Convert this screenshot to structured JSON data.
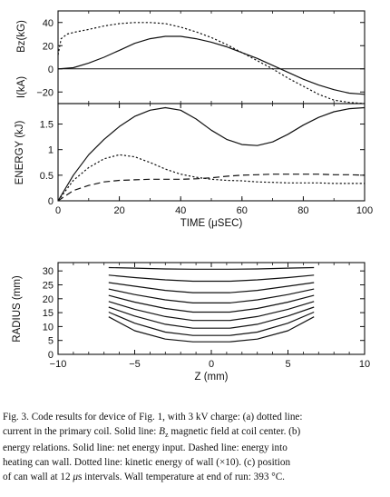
{
  "chart_data": [
    {
      "type": "line",
      "ylabel_top": "Bz(kG)",
      "ylabel_bottom": "I(kA)",
      "xlim": [
        0,
        100
      ],
      "ylim": [
        -30,
        50
      ],
      "yticks": [
        "40",
        "20",
        "0",
        "−20"
      ],
      "yticks_values": [
        40,
        20,
        0,
        -20
      ],
      "grid": false,
      "series": [
        {
          "style": "solid",
          "x": [
            0,
            5,
            10,
            15,
            20,
            25,
            30,
            35,
            40,
            45,
            50,
            55,
            60,
            65,
            70,
            75,
            80,
            85,
            90,
            95,
            100
          ],
          "y": [
            0,
            1,
            5,
            10,
            16,
            22,
            26,
            28,
            28,
            26,
            23,
            19,
            14,
            9,
            3,
            -3,
            -9,
            -14,
            -18,
            -21,
            -22
          ]
        },
        {
          "style": "dotted",
          "x": [
            0,
            1,
            3,
            6,
            10,
            15,
            20,
            25,
            30,
            35,
            40,
            45,
            50,
            55,
            60,
            65,
            70,
            75,
            80,
            85,
            90,
            95,
            100
          ],
          "y": [
            12,
            26,
            30,
            32,
            34,
            37,
            39,
            40,
            40,
            39,
            36,
            32,
            27,
            21,
            14,
            7,
            0,
            -8,
            -15,
            -22,
            -27,
            -29,
            -30
          ]
        }
      ]
    },
    {
      "type": "line",
      "ylabel": "ENERGY (kJ)",
      "xlabel": "TIME (μSEC)",
      "xlim": [
        0,
        100
      ],
      "ylim": [
        0,
        1.9
      ],
      "xticks": [
        "0",
        "20",
        "40",
        "60",
        "80",
        "100"
      ],
      "xticks_values": [
        0,
        20,
        40,
        60,
        80,
        100
      ],
      "yticks": [
        "0",
        "0.5",
        "1",
        "1.5"
      ],
      "yticks_values": [
        0,
        0.5,
        1,
        1.5
      ],
      "grid": false,
      "series": [
        {
          "style": "solid",
          "x": [
            0,
            5,
            10,
            15,
            20,
            25,
            30,
            35,
            40,
            45,
            50,
            55,
            60,
            65,
            70,
            75,
            80,
            85,
            90,
            95,
            100
          ],
          "y": [
            0,
            0.5,
            0.9,
            1.2,
            1.45,
            1.65,
            1.77,
            1.82,
            1.77,
            1.6,
            1.38,
            1.2,
            1.1,
            1.08,
            1.15,
            1.3,
            1.48,
            1.63,
            1.74,
            1.8,
            1.82
          ]
        },
        {
          "style": "dotted",
          "x": [
            0,
            5,
            10,
            15,
            20,
            25,
            30,
            35,
            40,
            45,
            50,
            55,
            60,
            65,
            70,
            75,
            80,
            85,
            90,
            95,
            100
          ],
          "y": [
            0,
            0.4,
            0.65,
            0.82,
            0.9,
            0.86,
            0.75,
            0.62,
            0.52,
            0.46,
            0.42,
            0.4,
            0.39,
            0.37,
            0.36,
            0.35,
            0.35,
            0.35,
            0.34,
            0.34,
            0.34
          ]
        },
        {
          "style": "dashed",
          "x": [
            0,
            5,
            10,
            15,
            20,
            25,
            30,
            35,
            40,
            45,
            50,
            55,
            60,
            65,
            70,
            75,
            80,
            85,
            90,
            95,
            100
          ],
          "y": [
            0,
            0.2,
            0.3,
            0.37,
            0.4,
            0.41,
            0.42,
            0.42,
            0.42,
            0.43,
            0.45,
            0.48,
            0.5,
            0.51,
            0.52,
            0.52,
            0.52,
            0.52,
            0.51,
            0.51,
            0.5
          ]
        }
      ]
    },
    {
      "type": "line",
      "ylabel": "RADIUS (mm)",
      "xlabel": "Z (mm)",
      "xlim": [
        -10,
        10
      ],
      "ylim": [
        0,
        33
      ],
      "xticks": [
        "−10",
        "−5",
        "0",
        "5",
        "10"
      ],
      "xticks_values": [
        -10,
        -5,
        0,
        5,
        10
      ],
      "yticks": [
        "0",
        "5",
        "10",
        "15",
        "20",
        "25",
        "30"
      ],
      "yticks_values": [
        0,
        5,
        10,
        15,
        20,
        25,
        30
      ],
      "grid": false,
      "series": [
        {
          "x": [
            -6.7,
            -5.0,
            -3.0,
            -1.2,
            1.2,
            3.0,
            5.0,
            6.7
          ],
          "y": [
            31.2,
            31.0,
            30.7,
            30.6,
            30.6,
            30.7,
            31.0,
            31.2
          ]
        },
        {
          "x": [
            -6.7,
            -5.0,
            -3.0,
            -1.2,
            1.2,
            3.0,
            5.0,
            6.7
          ],
          "y": [
            28.5,
            27.6,
            26.8,
            26.3,
            26.3,
            26.8,
            27.6,
            28.5
          ]
        },
        {
          "x": [
            -6.7,
            -5.0,
            -3.0,
            -1.2,
            1.2,
            3.0,
            5.0,
            6.7
          ],
          "y": [
            25.8,
            24.5,
            23.0,
            22.2,
            22.2,
            23.0,
            24.5,
            25.8
          ]
        },
        {
          "x": [
            -6.7,
            -5.0,
            -3.0,
            -1.2,
            1.2,
            3.0,
            5.0,
            6.7
          ],
          "y": [
            23.5,
            21.5,
            19.6,
            18.5,
            18.5,
            19.6,
            21.5,
            23.5
          ]
        },
        {
          "x": [
            -6.7,
            -5.0,
            -3.0,
            -1.2,
            1.2,
            3.0,
            5.0,
            6.7
          ],
          "y": [
            21.2,
            18.8,
            16.5,
            15.2,
            15.2,
            16.5,
            18.8,
            21.2
          ]
        },
        {
          "x": [
            -6.7,
            -5.0,
            -3.0,
            -1.2,
            1.2,
            3.0,
            5.0,
            6.7
          ],
          "y": [
            19.0,
            16.2,
            13.6,
            12.2,
            12.2,
            13.6,
            16.2,
            19.0
          ]
        },
        {
          "x": [
            -6.7,
            -5.0,
            -3.0,
            -1.2,
            1.2,
            3.0,
            5.0,
            6.7
          ],
          "y": [
            17.0,
            13.8,
            10.8,
            9.4,
            9.4,
            10.8,
            13.8,
            17.0
          ]
        },
        {
          "x": [
            -6.7,
            -5.0,
            -3.0,
            -1.2,
            1.2,
            3.0,
            5.0,
            6.7
          ],
          "y": [
            15.2,
            11.2,
            8.0,
            6.8,
            6.8,
            8.0,
            11.2,
            15.2
          ]
        },
        {
          "x": [
            -6.7,
            -5.0,
            -3.0,
            -1.2,
            1.2,
            3.0,
            5.0,
            6.7
          ],
          "y": [
            13.5,
            8.5,
            5.5,
            4.5,
            4.5,
            5.5,
            8.5,
            13.5
          ]
        }
      ]
    }
  ],
  "caption": {
    "lines": [
      [
        "Fig. 3. Code results for device of Fig. 1, with 3 kV charge: (a) dotted line:"
      ],
      [
        "current in the primary coil. Solid line: ",
        {
          "i": "B"
        },
        {
          "sub": "z"
        },
        " magnetic field at coil center. (b)"
      ],
      [
        "energy relations. Solid line: net energy input. Dashed line: energy into"
      ],
      [
        "heating can wall. Dotted line: kinetic energy of wall (×10). (c) position"
      ],
      [
        "of can wall at 12 ",
        {
          "i": "μ"
        },
        "s intervals. Wall temperature at end of run: 393 °C."
      ]
    ]
  }
}
